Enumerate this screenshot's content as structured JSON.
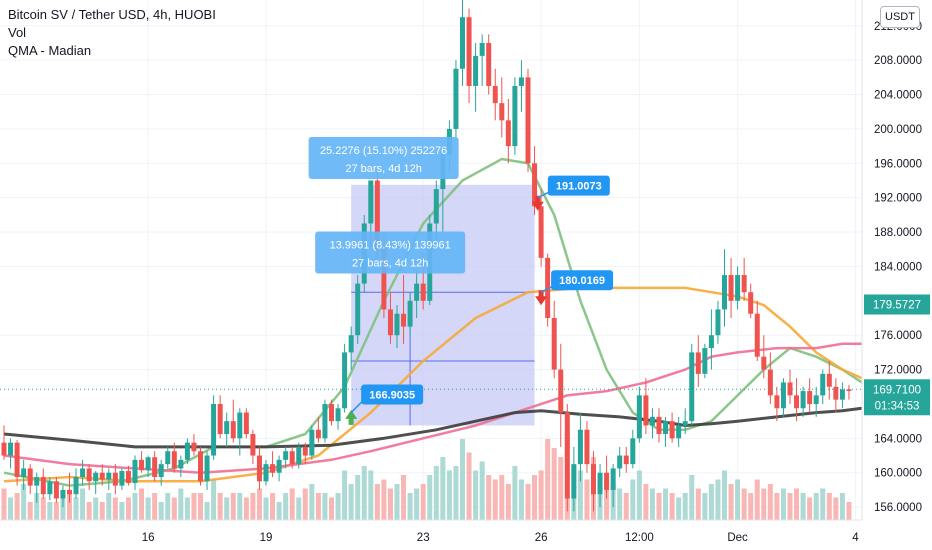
{
  "legend": {
    "title": "Bitcoin SV / Tether USD, 4h, HUOBI",
    "line2": "Vol",
    "line3": "QMA - Madian"
  },
  "unit": "USDT",
  "colors": {
    "up": "#26a69a",
    "down": "#ef5350",
    "green_ma": "#7ec17e",
    "orange_ma": "#f7a935",
    "pink_ma": "#ee6f96",
    "dark_ma": "#3c3c3c",
    "measure_fill": "#c7c9f5",
    "measure_label": "#64b5f6",
    "callout": "#2196f3",
    "price_tag": "#26a69a"
  },
  "chart_data": {
    "type": "candlestick",
    "y_axis": {
      "min": 154.5,
      "max": 215,
      "ticks": [
        "212.0000",
        "208.0000",
        "204.0000",
        "200.0000",
        "196.0000",
        "192.0000",
        "188.0000",
        "184.0000",
        "176.0000",
        "172.0000",
        "164.0000",
        "160.0000",
        "156.0000"
      ]
    },
    "x_axis": {
      "ticks": [
        {
          "label": "16",
          "bar": 22
        },
        {
          "label": "19",
          "bar": 40
        },
        {
          "label": "23",
          "bar": 64
        },
        {
          "label": "26",
          "bar": 82
        },
        {
          "label": "12:00",
          "bar": 97
        },
        {
          "label": "Dec",
          "bar": 112
        },
        {
          "label": "4",
          "bar": 130
        }
      ]
    },
    "candles": [
      [
        163.5,
        165.5,
        161.5,
        162
      ],
      [
        162,
        164,
        160.5,
        163.5
      ],
      [
        163.5,
        163.8,
        158.5,
        159.5
      ],
      [
        159.5,
        161.5,
        158,
        160.5
      ],
      [
        160.5,
        161,
        157.5,
        158.5
      ],
      [
        158.5,
        160,
        156.5,
        159.5
      ],
      [
        159.5,
        160.5,
        157,
        157.5
      ],
      [
        157.5,
        159.5,
        156.8,
        159
      ],
      [
        159,
        159.5,
        156.5,
        157
      ],
      [
        157,
        158.5,
        156,
        158
      ],
      [
        158,
        160,
        156.5,
        157.5
      ],
      [
        157.5,
        160.5,
        157,
        159.5
      ],
      [
        159.5,
        161.5,
        158.5,
        160.5
      ],
      [
        160.5,
        161,
        158,
        159
      ],
      [
        159,
        160.2,
        157.5,
        160
      ],
      [
        160,
        161,
        158.5,
        159.2
      ],
      [
        159.2,
        160.5,
        158,
        160
      ],
      [
        160,
        161,
        157.5,
        158.5
      ],
      [
        158.5,
        160.5,
        158,
        160.2
      ],
      [
        160.2,
        160.8,
        158.5,
        158.8
      ],
      [
        158.8,
        162,
        158,
        161.5
      ],
      [
        161.5,
        162.5,
        160,
        160.3
      ],
      [
        160.3,
        162,
        159.5,
        161.8
      ],
      [
        161.8,
        162.5,
        159,
        159.5
      ],
      [
        159.5,
        161.5,
        158.5,
        161
      ],
      [
        161,
        163,
        160.5,
        162.5
      ],
      [
        162.5,
        163.5,
        160,
        160.5
      ],
      [
        160.5,
        162,
        159.5,
        161.5
      ],
      [
        161.5,
        164,
        161,
        163.5
      ],
      [
        163.5,
        164.5,
        162,
        162.5
      ],
      [
        162.5,
        163,
        158.5,
        159
      ],
      [
        159,
        162.5,
        158,
        162
      ],
      [
        162,
        169,
        161.5,
        168
      ],
      [
        168,
        169,
        164,
        164.5
      ],
      [
        164.5,
        167,
        163,
        166
      ],
      [
        166,
        168.5,
        163.5,
        164
      ],
      [
        164,
        167.5,
        162,
        167
      ],
      [
        167,
        167.5,
        164,
        164.5
      ],
      [
        164.5,
        165,
        161,
        162
      ],
      [
        162,
        163,
        158,
        159
      ],
      [
        159,
        161.5,
        158.5,
        161
      ],
      [
        161,
        162.5,
        159.5,
        160
      ],
      [
        160,
        162,
        159,
        161.5
      ],
      [
        161.5,
        163,
        160.5,
        162.5
      ],
      [
        162.5,
        163,
        160.5,
        161
      ],
      [
        161,
        163.5,
        160.5,
        163
      ],
      [
        163,
        163.5,
        161,
        162
      ],
      [
        162,
        165.5,
        161.5,
        165
      ],
      [
        165,
        166.5,
        163.5,
        164
      ],
      [
        164,
        168.5,
        163.5,
        168
      ],
      [
        168,
        168.5,
        165.5,
        166
      ],
      [
        166,
        168,
        165,
        167.5
      ],
      [
        167.5,
        175,
        167,
        174
      ],
      [
        174,
        177,
        172,
        176
      ],
      [
        176,
        183,
        175,
        182
      ],
      [
        182,
        190,
        181,
        189
      ],
      [
        189,
        194,
        186,
        194
      ],
      [
        194,
        195,
        185,
        186
      ],
      [
        186,
        188,
        178,
        179
      ],
      [
        179,
        181,
        175,
        176
      ],
      [
        176,
        179.5,
        174.5,
        178.5
      ],
      [
        178.5,
        183,
        175,
        177
      ],
      [
        177,
        181,
        176,
        180
      ],
      [
        180,
        183.5,
        178,
        182
      ],
      [
        182,
        185.5,
        179,
        180
      ],
      [
        180,
        190,
        179.5,
        189
      ],
      [
        189,
        194,
        186,
        193
      ],
      [
        193,
        198,
        188,
        197
      ],
      [
        197,
        201,
        195,
        200
      ],
      [
        200,
        208,
        199,
        207
      ],
      [
        207,
        216,
        205,
        213
      ],
      [
        213,
        214,
        203,
        205
      ],
      [
        205,
        210,
        202,
        208.5
      ],
      [
        208.5,
        211,
        205,
        210
      ],
      [
        210,
        211,
        204,
        205
      ],
      [
        205,
        207,
        201,
        203
      ],
      [
        203,
        206,
        199,
        201
      ],
      [
        201,
        203.5,
        196,
        198
      ],
      [
        198,
        206,
        197,
        205
      ],
      [
        205,
        208,
        202,
        206
      ],
      [
        206,
        207,
        195,
        196
      ],
      [
        196,
        198,
        190,
        191
      ],
      [
        191,
        193,
        184,
        185
      ],
      [
        185,
        185.5,
        177,
        178
      ],
      [
        178,
        180,
        171,
        172
      ],
      [
        172,
        175,
        163,
        167
      ],
      [
        167,
        168,
        155.5,
        157
      ],
      [
        157,
        163,
        155.5,
        161
      ],
      [
        161,
        167,
        159,
        165
      ],
      [
        165,
        166,
        160,
        161
      ],
      [
        161,
        162.5,
        155.5,
        157.5
      ],
      [
        157.5,
        161,
        156,
        160
      ],
      [
        160,
        162,
        157,
        158
      ],
      [
        158,
        161,
        156,
        160.5
      ],
      [
        160.5,
        163,
        159.5,
        162
      ],
      [
        162,
        163,
        160,
        161
      ],
      [
        161,
        165,
        160.5,
        164
      ],
      [
        164,
        170,
        163.5,
        169
      ],
      [
        169,
        171,
        164.5,
        165.5
      ],
      [
        165.5,
        167.5,
        164,
        166.5
      ],
      [
        166.5,
        167.5,
        163.5,
        164.5
      ],
      [
        164.5,
        166.5,
        163,
        166
      ],
      [
        166,
        167,
        163.5,
        164
      ],
      [
        164,
        166.5,
        163,
        165.5
      ],
      [
        165.5,
        167.5,
        164.5,
        166
      ],
      [
        166,
        175,
        165.5,
        174
      ],
      [
        174,
        176,
        170,
        171.5
      ],
      [
        171.5,
        175,
        171,
        174.5
      ],
      [
        174.5,
        179,
        172,
        176
      ],
      [
        176,
        180,
        175,
        179
      ],
      [
        179,
        186,
        177,
        183
      ],
      [
        183,
        185,
        178,
        180
      ],
      [
        180,
        184,
        179,
        183
      ],
      [
        183,
        185,
        180,
        181
      ],
      [
        181,
        182,
        178,
        178.5
      ],
      [
        178.5,
        180,
        173,
        173.5
      ],
      [
        173.5,
        176,
        171,
        172
      ],
      [
        172,
        174,
        168,
        169
      ],
      [
        169,
        170,
        166,
        167.5
      ],
      [
        167.5,
        171,
        166.5,
        170.5
      ],
      [
        170.5,
        172,
        168,
        169
      ],
      [
        169,
        171,
        166,
        167.5
      ],
      [
        167.5,
        170,
        166.5,
        169.5
      ],
      [
        169.5,
        171,
        167,
        168
      ],
      [
        168,
        170,
        166.5,
        169
      ],
      [
        169,
        172,
        168,
        171.5
      ],
      [
        171.5,
        173,
        168.5,
        170
      ],
      [
        170,
        171,
        167,
        168.5
      ],
      [
        168.5,
        170.5,
        167.5,
        169.7
      ],
      [
        169.7,
        170.2,
        168.5,
        169.5
      ]
    ],
    "volume_relative": [
      0.35,
      0.25,
      0.3,
      0.4,
      0.2,
      0.3,
      0.25,
      0.2,
      0.2,
      0.3,
      0.3,
      0.25,
      0.35,
      0.2,
      0.25,
      0.2,
      0.3,
      0.25,
      0.2,
      0.25,
      0.3,
      0.35,
      0.25,
      0.3,
      0.2,
      0.3,
      0.25,
      0.35,
      0.25,
      0.3,
      0.3,
      0.2,
      0.45,
      0.3,
      0.25,
      0.3,
      0.3,
      0.25,
      0.3,
      0.35,
      0.25,
      0.3,
      0.2,
      0.3,
      0.35,
      0.25,
      0.35,
      0.4,
      0.3,
      0.3,
      0.25,
      0.3,
      0.55,
      0.4,
      0.5,
      0.6,
      0.55,
      0.4,
      0.45,
      0.35,
      0.4,
      0.5,
      0.3,
      0.35,
      0.4,
      0.5,
      0.6,
      0.7,
      0.55,
      0.6,
      0.9,
      0.75,
      0.55,
      0.65,
      0.5,
      0.45,
      0.5,
      0.4,
      0.6,
      0.45,
      0.4,
      0.5,
      0.55,
      0.9,
      0.8,
      0.7,
      1.0,
      0.6,
      0.55,
      0.45,
      0.7,
      0.5,
      0.45,
      0.4,
      0.35,
      0.3,
      0.45,
      0.55,
      0.4,
      0.35,
      0.3,
      0.35,
      0.3,
      0.25,
      0.3,
      0.5,
      0.35,
      0.3,
      0.4,
      0.45,
      0.55,
      0.4,
      0.45,
      0.35,
      0.3,
      0.45,
      0.35,
      0.4,
      0.3,
      0.35,
      0.3,
      0.35,
      0.3,
      0.25,
      0.3,
      0.35,
      0.3,
      0.25,
      0.3,
      0.2
    ],
    "moving_averages": [
      {
        "name": "green",
        "points": [
          [
            0,
            160
          ],
          [
            10,
            158.5
          ],
          [
            18,
            159
          ],
          [
            26,
            160.5
          ],
          [
            32,
            163
          ],
          [
            40,
            163
          ],
          [
            46,
            164.5
          ],
          [
            52,
            170
          ],
          [
            58,
            180
          ],
          [
            64,
            189
          ],
          [
            70,
            194
          ],
          [
            76,
            196.5
          ],
          [
            80,
            196
          ],
          [
            84,
            190
          ],
          [
            88,
            180
          ],
          [
            92,
            172
          ],
          [
            96,
            167
          ],
          [
            100,
            165
          ],
          [
            104,
            165
          ],
          [
            108,
            166
          ],
          [
            112,
            169
          ],
          [
            116,
            172
          ],
          [
            120,
            174.5
          ],
          [
            124,
            173.5
          ],
          [
            128,
            172
          ],
          [
            131,
            170.5
          ]
        ]
      },
      {
        "name": "orange",
        "points": [
          [
            0,
            159
          ],
          [
            10,
            159.5
          ],
          [
            20,
            159
          ],
          [
            30,
            159
          ],
          [
            40,
            160
          ],
          [
            48,
            162
          ],
          [
            56,
            167
          ],
          [
            64,
            173
          ],
          [
            72,
            178
          ],
          [
            80,
            181
          ],
          [
            88,
            181.5
          ],
          [
            96,
            181.5
          ],
          [
            104,
            181.5
          ],
          [
            108,
            181
          ],
          [
            112,
            180.5
          ],
          [
            116,
            179.5
          ],
          [
            120,
            177
          ],
          [
            124,
            174
          ],
          [
            128,
            172
          ],
          [
            131,
            171
          ]
        ]
      },
      {
        "name": "pink",
        "points": [
          [
            0,
            162
          ],
          [
            10,
            161
          ],
          [
            20,
            160.5
          ],
          [
            30,
            160
          ],
          [
            40,
            160.5
          ],
          [
            50,
            161.5
          ],
          [
            56,
            162.5
          ],
          [
            64,
            164
          ],
          [
            72,
            165.5
          ],
          [
            80,
            167.5
          ],
          [
            86,
            169
          ],
          [
            92,
            169.5
          ],
          [
            98,
            170.5
          ],
          [
            104,
            172
          ],
          [
            108,
            173.5
          ],
          [
            112,
            174
          ],
          [
            118,
            174.5
          ],
          [
            124,
            174.5
          ],
          [
            128,
            175
          ],
          [
            131,
            175
          ]
        ]
      },
      {
        "name": "dark",
        "points": [
          [
            0,
            164.5
          ],
          [
            10,
            163.8
          ],
          [
            20,
            163
          ],
          [
            30,
            163
          ],
          [
            40,
            163
          ],
          [
            50,
            163.2
          ],
          [
            58,
            164
          ],
          [
            66,
            165
          ],
          [
            72,
            166
          ],
          [
            78,
            167
          ],
          [
            82,
            167.2
          ],
          [
            88,
            166.8
          ],
          [
            94,
            166.5
          ],
          [
            100,
            166
          ],
          [
            104,
            165.5
          ],
          [
            108,
            165.7
          ],
          [
            112,
            166
          ],
          [
            118,
            166.5
          ],
          [
            124,
            167
          ],
          [
            128,
            167.2
          ],
          [
            131,
            167.5
          ]
        ]
      }
    ],
    "measure_box": {
      "bar_start": 53,
      "bar_end": 81,
      "price_top": 193.5,
      "price_bottom": 165.5
    },
    "measure_lines": [
      {
        "bar": 53,
        "price": 181
      },
      {
        "bar": 81,
        "price": 181
      },
      {
        "bar": 53,
        "price": 173
      },
      {
        "bar": 81,
        "price": 173
      }
    ],
    "measure_labels": [
      {
        "line1": "25.2276 (15.10%) 252276",
        "line2": "27 bars, 4d 12h",
        "bar": 57.5,
        "price": 196.5
      },
      {
        "line1": "13.9961 (8.43%) 139961",
        "line2": "27 bars, 4d 12h",
        "bar": 58.5,
        "price": 185.5
      }
    ],
    "callouts": [
      {
        "text": "166.9035",
        "bar": 53,
        "price": 167,
        "dir": "up"
      },
      {
        "text": "191.0073",
        "bar": 81.5,
        "price": 192,
        "dir": "down"
      },
      {
        "text": "180.0169",
        "bar": 82,
        "price": 181,
        "dir": "down"
      }
    ],
    "signals": [
      {
        "type": "buy",
        "bar": 53,
        "price": 166.5
      },
      {
        "type": "sell",
        "bar": 81.5,
        "price": 191.3
      },
      {
        "type": "sell",
        "bar": 82,
        "price": 180.3
      }
    ],
    "last_price": "179.5727",
    "current_price": "169.7100",
    "countdown": "01:34:53",
    "current_price_value": 169.71,
    "last_price_value": 179.5727
  }
}
